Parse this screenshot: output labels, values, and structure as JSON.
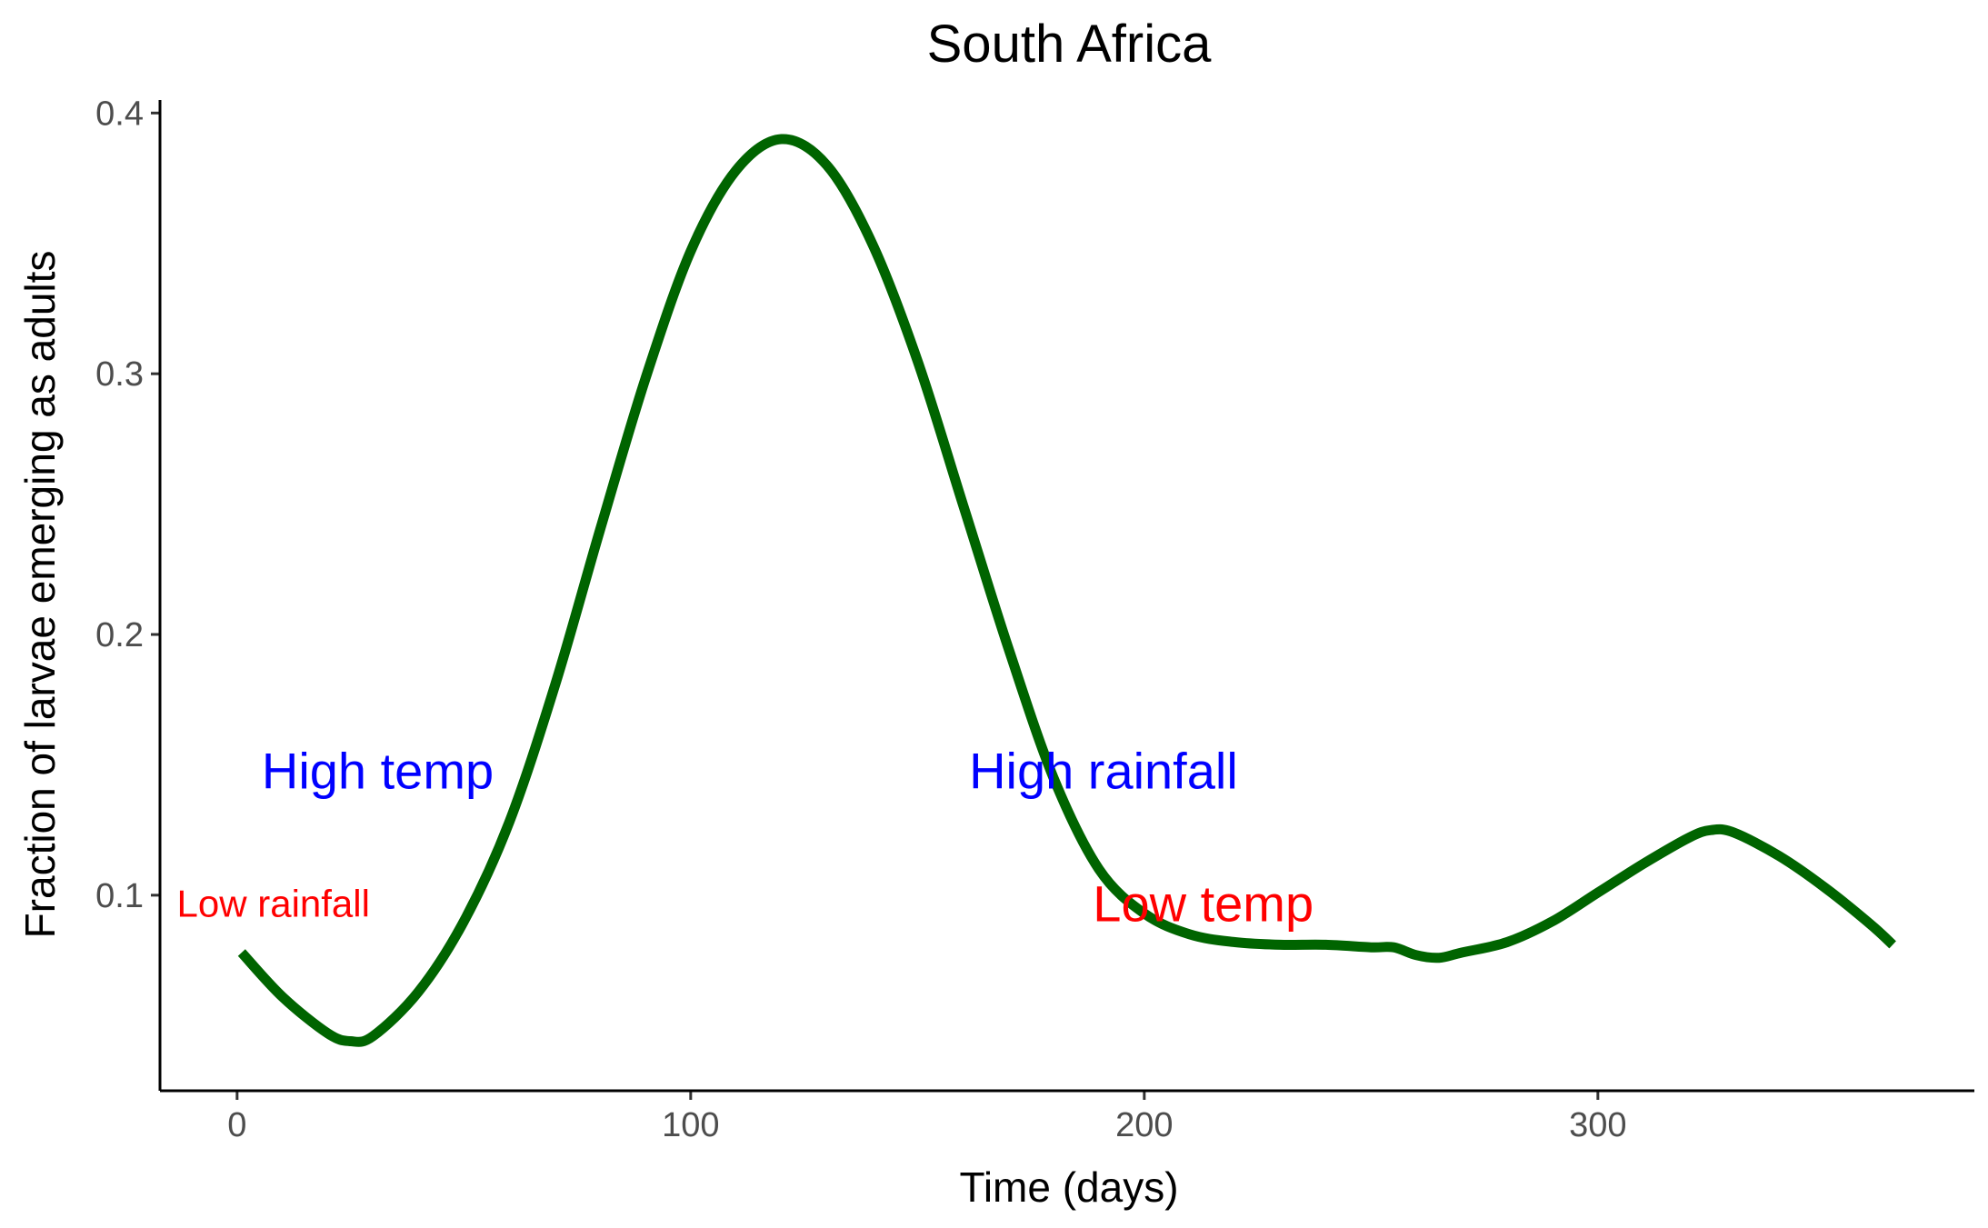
{
  "chart_data": {
    "type": "line",
    "title": "South Africa",
    "xlabel": "Time (days)",
    "ylabel": "Fraction of larvae emerging as adults",
    "xlim": [
      -17,
      383
    ],
    "ylim": [
      0.025,
      0.405
    ],
    "x_ticks": [
      0,
      100,
      200,
      300
    ],
    "y_ticks": [
      0.1,
      0.2,
      0.3,
      0.4
    ],
    "x_tick_labels": [
      "0",
      "100",
      "200",
      "300"
    ],
    "y_tick_labels": [
      "0.1",
      "0.2",
      "0.3",
      "0.4"
    ],
    "grid": false,
    "legend": "none",
    "line_color": "#006400",
    "series": [
      {
        "x": [
          1,
          10,
          20,
          25,
          30,
          40,
          50,
          60,
          70,
          80,
          90,
          100,
          110,
          120,
          130,
          140,
          150,
          160,
          170,
          180,
          190,
          200,
          210,
          220,
          230,
          240,
          250,
          255,
          260,
          265,
          270,
          280,
          290,
          300,
          310,
          320,
          325,
          330,
          340,
          350,
          360,
          365
        ],
        "y": [
          0.078,
          0.061,
          0.047,
          0.044,
          0.046,
          0.063,
          0.09,
          0.128,
          0.18,
          0.24,
          0.298,
          0.347,
          0.378,
          0.39,
          0.38,
          0.35,
          0.305,
          0.25,
          0.195,
          0.145,
          0.11,
          0.093,
          0.085,
          0.082,
          0.081,
          0.081,
          0.08,
          0.08,
          0.077,
          0.076,
          0.078,
          0.082,
          0.09,
          0.101,
          0.112,
          0.122,
          0.125,
          0.124,
          0.115,
          0.103,
          0.089,
          0.081
        ]
      }
    ],
    "annotations": [
      {
        "text": "High temp",
        "x": 31,
        "y": 0.148,
        "color": "#0000ff",
        "size": "large"
      },
      {
        "text": "High rainfall",
        "x": 191,
        "y": 0.148,
        "color": "#0000ff",
        "size": "large"
      },
      {
        "text": "Low rainfall",
        "x": 8,
        "y": 0.097,
        "color": "#ff0000",
        "size": "small"
      },
      {
        "text": "Low temp",
        "x": 213,
        "y": 0.097,
        "color": "#ff0000",
        "size": "large"
      }
    ]
  }
}
